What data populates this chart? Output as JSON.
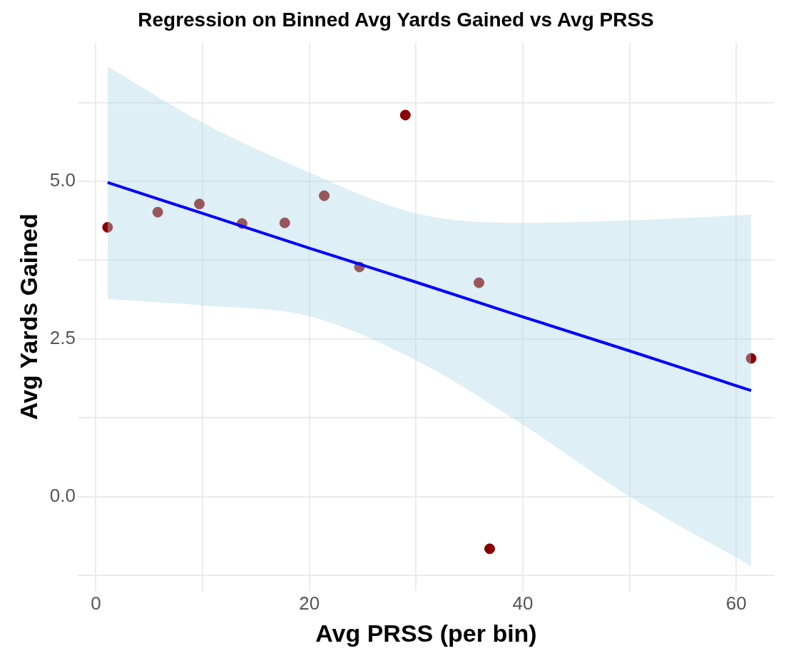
{
  "chart_data": {
    "type": "scatter",
    "title": "Regression on Binned Avg Yards Gained vs Avg PRSS",
    "xlabel": "Avg PRSS (per bin)",
    "ylabel": "Avg Yards Gained",
    "series": [
      {
        "marker": "circle",
        "color": "#8b0000",
        "x": [
          1.1,
          5.8,
          9.7,
          13.7,
          17.7,
          21.4,
          24.7,
          29.0,
          35.9,
          36.9,
          61.4
        ],
        "values": [
          4.27,
          4.51,
          4.64,
          4.33,
          4.34,
          4.77,
          3.64,
          6.05,
          3.39,
          -0.83,
          2.19
        ]
      },
      {
        "type": "line",
        "color": "#0000ff",
        "x": [
          1.1,
          10,
          20,
          30,
          40,
          50,
          61.4
        ],
        "values": [
          4.98,
          4.49,
          3.94,
          3.4,
          2.85,
          2.31,
          1.68
        ],
        "lower": [
          3.13,
          3.03,
          2.86,
          2.16,
          1.14,
          0.0,
          -1.1
        ],
        "upper": [
          6.82,
          5.93,
          5.14,
          4.49,
          4.34,
          4.38,
          4.47
        ]
      }
    ],
    "xlim": [
      -1.7,
      63.6
    ],
    "ylim": [
      -1.5,
      7.2
    ],
    "xticks": [
      0,
      {
        "value": 10,
        "label": null
      },
      20,
      {
        "value": 30,
        "label": null
      },
      40,
      {
        "value": 50,
        "label": null
      },
      60
    ],
    "yticks": [
      {
        "value": -1.25,
        "label": null
      },
      {
        "value": 0,
        "label": "0.0"
      },
      {
        "value": 1.25,
        "label": null
      },
      2.5,
      {
        "value": 3.75,
        "label": null
      },
      {
        "value": 5,
        "label": "5.0"
      },
      {
        "value": 6.25,
        "label": null
      }
    ],
    "grid": true,
    "legend": false
  }
}
